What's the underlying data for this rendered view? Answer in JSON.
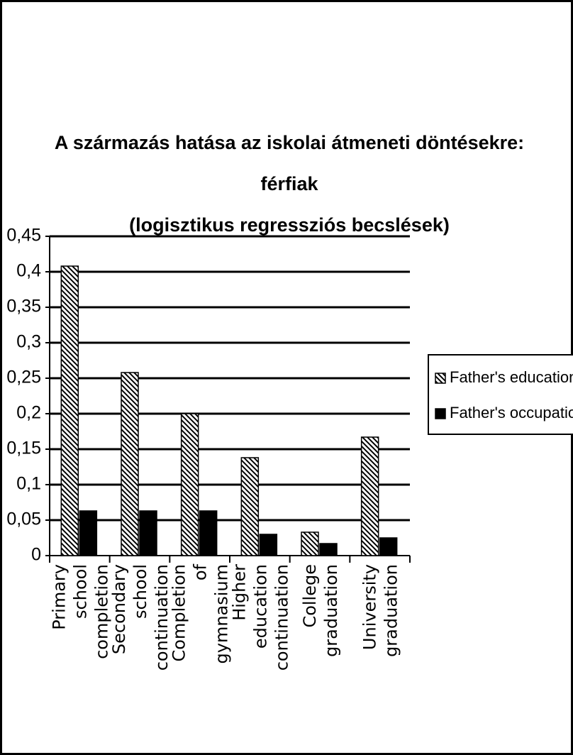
{
  "chart_data": {
    "type": "bar",
    "title": [
      "A származás hatása az iskolai átmeneti döntésekre:",
      "férfiak",
      "(logisztikus regressziós becslések)"
    ],
    "categories": [
      "Primary school completion",
      "Secondary school continuation",
      "Completion of gymnasium",
      "Higher education continuation",
      "College graduation",
      "University graduation"
    ],
    "series": [
      {
        "name": "Father's education",
        "color": "#000000",
        "pattern": "hatch",
        "values": [
          0.408,
          0.258,
          0.2,
          0.138,
          0.033,
          0.167
        ]
      },
      {
        "name": "Father's occupation",
        "color": "#000000",
        "pattern": "solid",
        "values": [
          0.063,
          0.063,
          0.063,
          0.03,
          0.017,
          0.025
        ]
      }
    ],
    "ylim": [
      0,
      0.45
    ],
    "yticks": [
      {
        "value": 0,
        "label": "0"
      },
      {
        "value": 0.05,
        "label": "0,05"
      },
      {
        "value": 0.1,
        "label": "0,1"
      },
      {
        "value": 0.15,
        "label": "0,15"
      },
      {
        "value": 0.2,
        "label": "0,2"
      },
      {
        "value": 0.25,
        "label": "0,25"
      },
      {
        "value": 0.3,
        "label": "0,3"
      },
      {
        "value": 0.35,
        "label": "0,35"
      },
      {
        "value": 0.4,
        "label": "0,4"
      },
      {
        "value": 0.45,
        "label": "0,45"
      }
    ],
    "grid": true,
    "legend": "right"
  }
}
